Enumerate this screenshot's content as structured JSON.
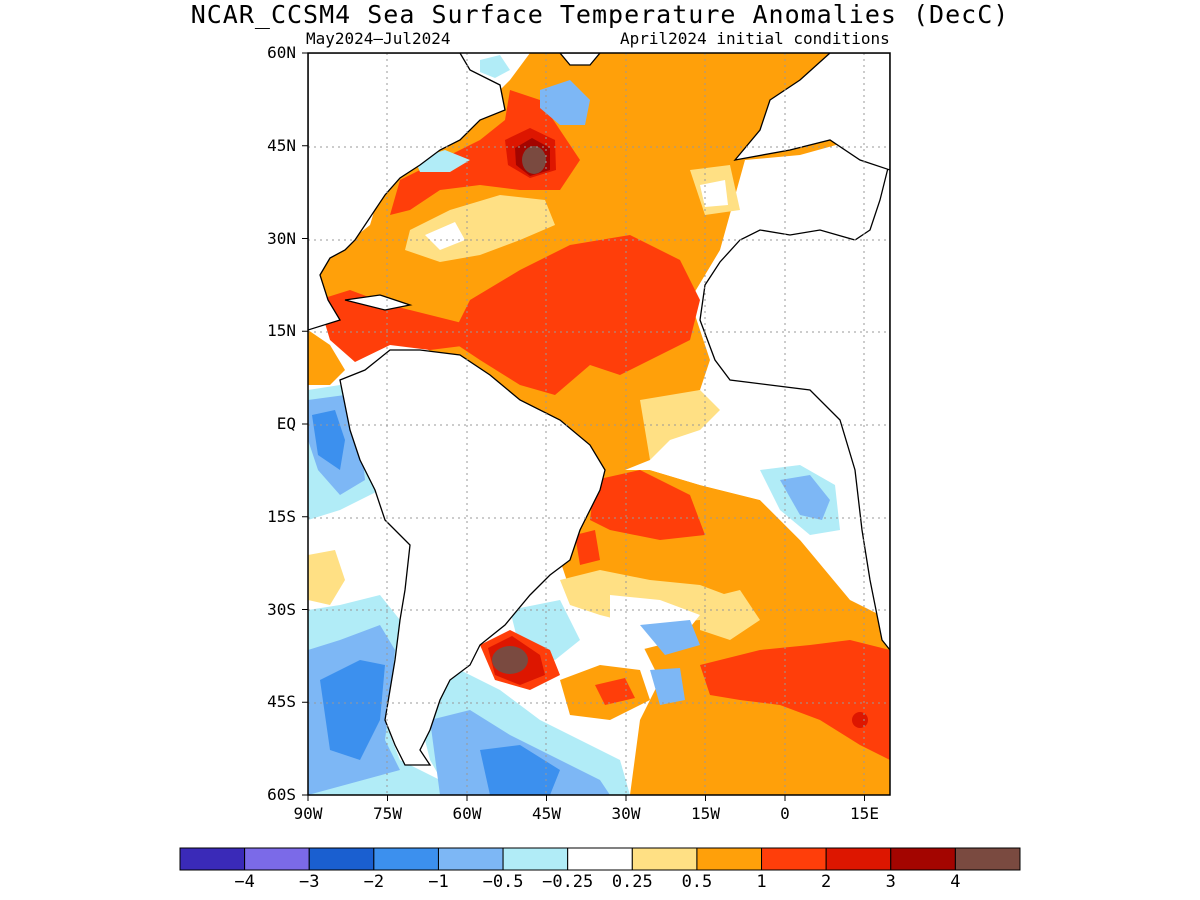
{
  "title": "NCAR_CCSM4 Sea Surface Temperature Anomalies (DecC)",
  "subtitle_left": "May2024–Jul2024",
  "subtitle_right": "April2024 initial conditions",
  "map": {
    "lat_range": [
      -60,
      60
    ],
    "lon_range": [
      -90,
      20
    ],
    "grid": "dotted",
    "lat_labels": [
      "60N",
      "45N",
      "30N",
      "15N",
      "EQ",
      "15S",
      "30S",
      "45S",
      "60S"
    ],
    "lon_labels": [
      "90W",
      "75W",
      "60W",
      "45W",
      "30W",
      "15W",
      "0",
      "15E"
    ]
  },
  "colorbar": {
    "labels": [
      "−4",
      "−3",
      "−2",
      "−1",
      "−0.5",
      "−0.25",
      "0.25",
      "0.5",
      "1",
      "2",
      "3",
      "4"
    ],
    "colors": [
      "#3a2ab8",
      "#7b6ae8",
      "#1a5fd0",
      "#3c90ee",
      "#7db7f5",
      "#b1ecf7",
      "#ffffff",
      "#ffe084",
      "#ffa00a",
      "#ff3e0a",
      "#dd1600",
      "#a30500",
      "#7a4a40"
    ]
  }
}
